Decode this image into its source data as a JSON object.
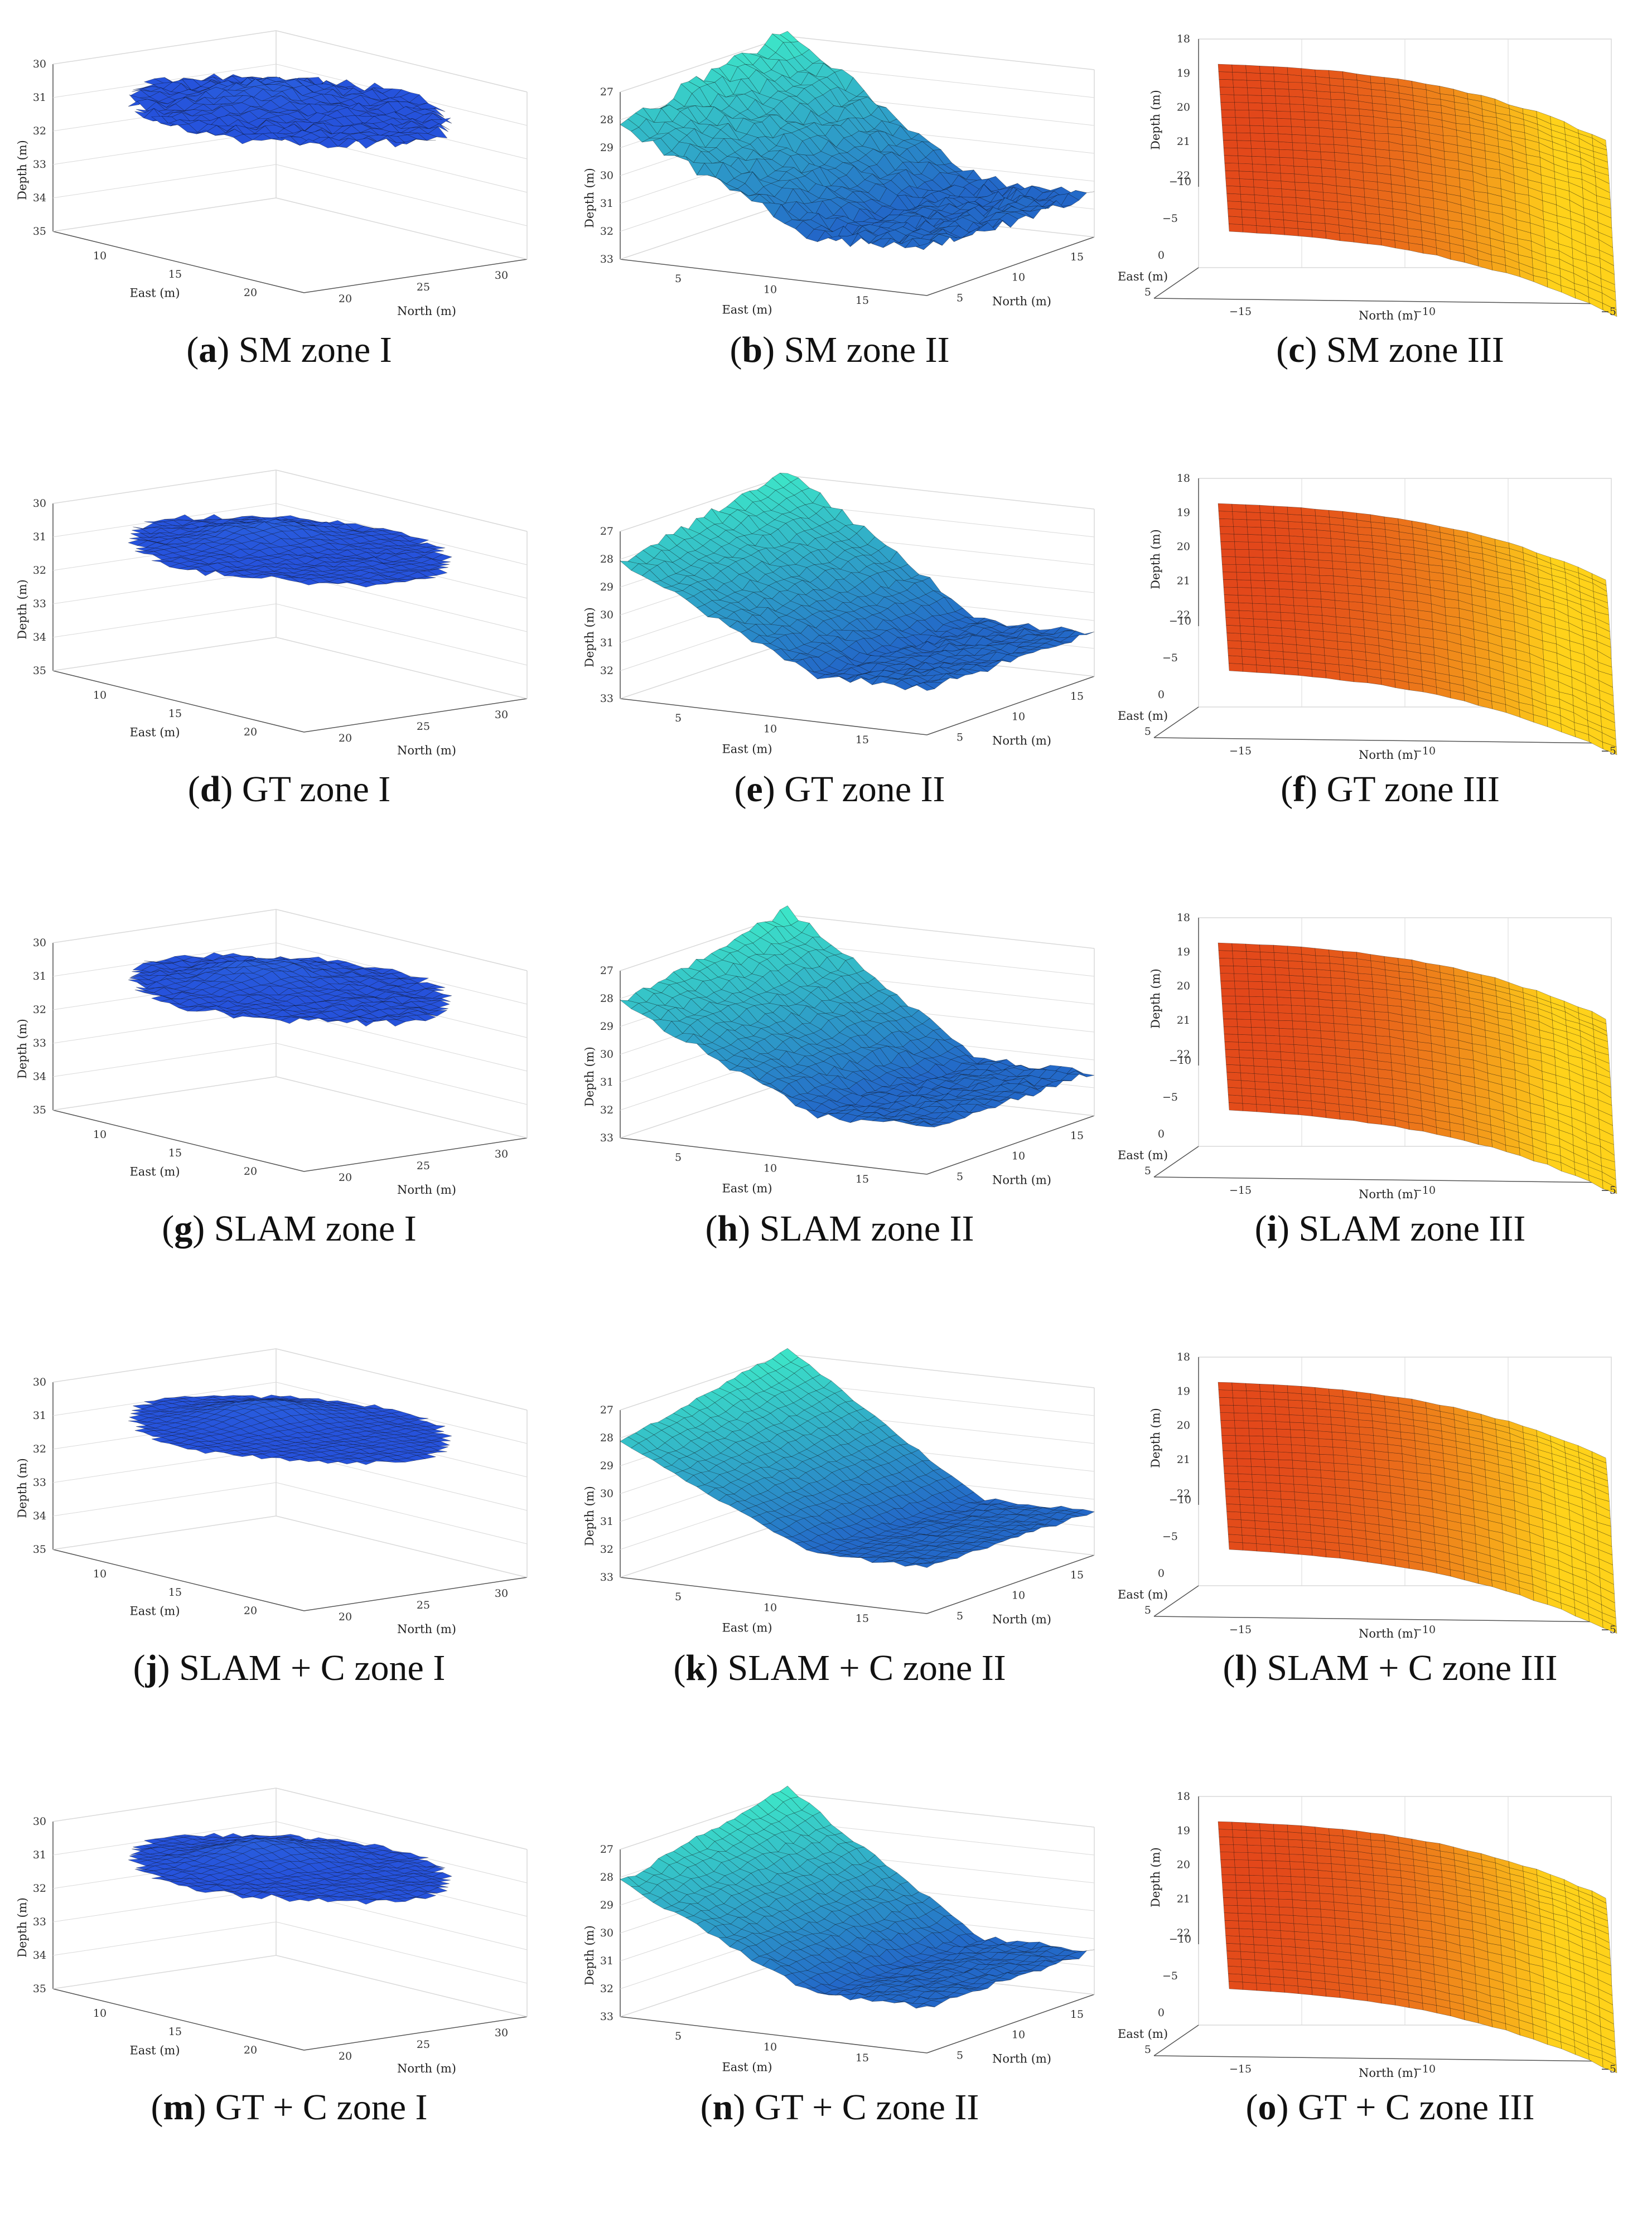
{
  "panels": [
    {
      "letter": "a",
      "caption": "SM zone I",
      "zone": "I",
      "surface": "SM",
      "colormap": "blue",
      "chart_data": {
        "type": "surface3d",
        "xlabel": "East (m)",
        "ylabel": "North (m)",
        "zlabel": "Depth (m)",
        "xticks": [
          "10",
          "15",
          "20"
        ],
        "yticks": [
          "20",
          "25",
          "30"
        ],
        "zticks": [
          "30",
          "31",
          "32",
          "33",
          "34",
          "35"
        ],
        "xlim": [
          7,
          22
        ],
        "ylim": [
          20,
          31
        ],
        "zlim": [
          30,
          35
        ],
        "roughness": 0.9
      }
    },
    {
      "letter": "b",
      "caption": "SM zone II",
      "zone": "II",
      "surface": "SM",
      "colormap": "cyan",
      "chart_data": {
        "type": "surface3d",
        "xlabel": "East (m)",
        "ylabel": "North (m)",
        "zlabel": "Depth (m)",
        "xticks": [
          "5",
          "10",
          "15"
        ],
        "yticks": [
          "5",
          "10",
          "15"
        ],
        "zticks": [
          "27",
          "28",
          "29",
          "30",
          "31",
          "32",
          "33"
        ],
        "xlim": [
          0,
          16
        ],
        "ylim": [
          0,
          16
        ],
        "zlim": [
          27,
          33
        ],
        "roughness": 0.7
      }
    },
    {
      "letter": "c",
      "caption": "SM zone III",
      "zone": "III",
      "surface": "SM",
      "colormap": "orange",
      "chart_data": {
        "type": "surface3d",
        "xlabel": "East (m)",
        "ylabel": "North (m)",
        "zlabel": "Depth (m)",
        "xticks": [
          "5",
          "0",
          "−5",
          "−10"
        ],
        "yticks": [
          "−15",
          "−10",
          "−5"
        ],
        "zticks": [
          "18",
          "19",
          "20",
          "21",
          "22"
        ],
        "xlim": [
          -10,
          5
        ],
        "ylim": [
          -18,
          -5
        ],
        "zlim": [
          18,
          22
        ],
        "roughness": 0.3
      }
    },
    {
      "letter": "d",
      "caption": "GT zone I",
      "zone": "I",
      "surface": "GT",
      "colormap": "blue",
      "chart_data": {
        "type": "surface3d",
        "xlabel": "East (m)",
        "ylabel": "North (m)",
        "zlabel": "Depth (m)",
        "xticks": [
          "10",
          "15",
          "20"
        ],
        "yticks": [
          "20",
          "25",
          "30"
        ],
        "zticks": [
          "30",
          "31",
          "32",
          "33",
          "34",
          "35"
        ],
        "xlim": [
          7,
          22
        ],
        "ylim": [
          20,
          31
        ],
        "zlim": [
          30,
          35
        ],
        "roughness": 0.4
      }
    },
    {
      "letter": "e",
      "caption": "GT zone II",
      "zone": "II",
      "surface": "GT",
      "colormap": "cyan",
      "chart_data": {
        "type": "surface3d",
        "xlabel": "East (m)",
        "ylabel": "North (m)",
        "zlabel": "Depth (m)",
        "xticks": [
          "5",
          "10",
          "15"
        ],
        "yticks": [
          "5",
          "10",
          "15"
        ],
        "zticks": [
          "27",
          "28",
          "29",
          "30",
          "31",
          "32",
          "33"
        ],
        "xlim": [
          0,
          16
        ],
        "ylim": [
          0,
          16
        ],
        "zlim": [
          27,
          33
        ],
        "roughness": 0.4
      }
    },
    {
      "letter": "f",
      "caption": "GT zone III",
      "zone": "III",
      "surface": "GT",
      "colormap": "orange",
      "chart_data": {
        "type": "surface3d",
        "xlabel": "East (m)",
        "ylabel": "North (m)",
        "zlabel": "Depth (m)",
        "xticks": [
          "5",
          "0",
          "−5",
          "−10"
        ],
        "yticks": [
          "−15",
          "−10",
          "−5"
        ],
        "zticks": [
          "18",
          "19",
          "20",
          "21",
          "22"
        ],
        "xlim": [
          -10,
          5
        ],
        "ylim": [
          -18,
          -5
        ],
        "zlim": [
          18,
          22
        ],
        "roughness": 0.25
      }
    },
    {
      "letter": "g",
      "caption": "SLAM zone I",
      "zone": "I",
      "surface": "SLAM",
      "colormap": "blue",
      "chart_data": {
        "type": "surface3d",
        "xlabel": "East (m)",
        "ylabel": "North (m)",
        "zlabel": "Depth (m)",
        "xticks": [
          "10",
          "15",
          "20"
        ],
        "yticks": [
          "20",
          "25",
          "30"
        ],
        "zticks": [
          "30",
          "31",
          "32",
          "33",
          "34",
          "35"
        ],
        "xlim": [
          7,
          22
        ],
        "ylim": [
          20,
          31
        ],
        "zlim": [
          30,
          35
        ],
        "roughness": 0.5
      }
    },
    {
      "letter": "h",
      "caption": "SLAM zone II",
      "zone": "II",
      "surface": "SLAM",
      "colormap": "cyan",
      "chart_data": {
        "type": "surface3d",
        "xlabel": "East (m)",
        "ylabel": "North (m)",
        "zlabel": "Depth (m)",
        "xticks": [
          "5",
          "10",
          "15"
        ],
        "yticks": [
          "5",
          "10",
          "15"
        ],
        "zticks": [
          "27",
          "28",
          "29",
          "30",
          "31",
          "32",
          "33"
        ],
        "xlim": [
          0,
          16
        ],
        "ylim": [
          0,
          16
        ],
        "zlim": [
          27,
          33
        ],
        "roughness": 0.4
      }
    },
    {
      "letter": "i",
      "caption": "SLAM zone III",
      "zone": "III",
      "surface": "SLAM",
      "colormap": "orange",
      "chart_data": {
        "type": "surface3d",
        "xlabel": "East (m)",
        "ylabel": "North (m)",
        "zlabel": "Depth (m)",
        "xticks": [
          "5",
          "0",
          "−5",
          "−10"
        ],
        "yticks": [
          "−15",
          "−10",
          "−5"
        ],
        "zticks": [
          "18",
          "19",
          "20",
          "21",
          "22"
        ],
        "xlim": [
          -10,
          5
        ],
        "ylim": [
          -18,
          -5
        ],
        "zlim": [
          18,
          22
        ],
        "roughness": 0.25
      }
    },
    {
      "letter": "j",
      "caption": "SLAM + C zone I",
      "zone": "I",
      "surface": "SLAM + C",
      "colormap": "blue",
      "chart_data": {
        "type": "surface3d",
        "xlabel": "East (m)",
        "ylabel": "North (m)",
        "zlabel": "Depth (m)",
        "xticks": [
          "10",
          "15",
          "20"
        ],
        "yticks": [
          "20",
          "25",
          "30"
        ],
        "zticks": [
          "30",
          "31",
          "32",
          "33",
          "34",
          "35"
        ],
        "xlim": [
          7,
          22
        ],
        "ylim": [
          20,
          31
        ],
        "zlim": [
          30,
          35
        ],
        "roughness": 0.2
      }
    },
    {
      "letter": "k",
      "caption": "SLAM + C zone II",
      "zone": "II",
      "surface": "SLAM + C",
      "colormap": "cyan",
      "chart_data": {
        "type": "surface3d",
        "xlabel": "East (m)",
        "ylabel": "North (m)",
        "zlabel": "Depth (m)",
        "xticks": [
          "5",
          "10",
          "15"
        ],
        "yticks": [
          "5",
          "10",
          "15"
        ],
        "zticks": [
          "27",
          "28",
          "29",
          "30",
          "31",
          "32",
          "33"
        ],
        "xlim": [
          0,
          16
        ],
        "ylim": [
          0,
          16
        ],
        "zlim": [
          27,
          33
        ],
        "roughness": 0.2
      }
    },
    {
      "letter": "l",
      "caption": "SLAM + C zone III",
      "zone": "III",
      "surface": "SLAM + C",
      "colormap": "orange",
      "chart_data": {
        "type": "surface3d",
        "xlabel": "East (m)",
        "ylabel": "North (m)",
        "zlabel": "Depth (m)",
        "xticks": [
          "5",
          "0",
          "−5",
          "−10"
        ],
        "yticks": [
          "−15",
          "−10",
          "−5"
        ],
        "zticks": [
          "18",
          "19",
          "20",
          "21",
          "22"
        ],
        "xlim": [
          -10,
          5
        ],
        "ylim": [
          -18,
          -5
        ],
        "zlim": [
          18,
          22
        ],
        "roughness": 0.2
      }
    },
    {
      "letter": "m",
      "caption": "GT + C zone I",
      "zone": "I",
      "surface": "GT + C",
      "colormap": "blue",
      "chart_data": {
        "type": "surface3d",
        "xlabel": "East (m)",
        "ylabel": "North (m)",
        "zlabel": "Depth (m)",
        "xticks": [
          "10",
          "15",
          "20"
        ],
        "yticks": [
          "20",
          "25",
          "30"
        ],
        "zticks": [
          "30",
          "31",
          "32",
          "33",
          "34",
          "35"
        ],
        "xlim": [
          7,
          22
        ],
        "ylim": [
          20,
          31
        ],
        "zlim": [
          30,
          35
        ],
        "roughness": 0.3
      }
    },
    {
      "letter": "n",
      "caption": "GT + C zone II",
      "zone": "II",
      "surface": "GT + C",
      "colormap": "cyan",
      "chart_data": {
        "type": "surface3d",
        "xlabel": "East (m)",
        "ylabel": "North (m)",
        "zlabel": "Depth (m)",
        "xticks": [
          "5",
          "10",
          "15"
        ],
        "yticks": [
          "5",
          "10",
          "15"
        ],
        "zticks": [
          "27",
          "28",
          "29",
          "30",
          "31",
          "32",
          "33"
        ],
        "xlim": [
          0,
          16
        ],
        "ylim": [
          0,
          16
        ],
        "zlim": [
          27,
          33
        ],
        "roughness": 0.3
      }
    },
    {
      "letter": "o",
      "caption": "GT + C zone III",
      "zone": "III",
      "surface": "GT + C",
      "colormap": "orange",
      "chart_data": {
        "type": "surface3d",
        "xlabel": "East (m)",
        "ylabel": "North (m)",
        "zlabel": "Depth (m)",
        "xticks": [
          "5",
          "0",
          "−5",
          "−10"
        ],
        "yticks": [
          "−15",
          "−10",
          "−5"
        ],
        "zticks": [
          "18",
          "19",
          "20",
          "21",
          "22"
        ],
        "xlim": [
          -10,
          5
        ],
        "ylim": [
          -18,
          -5
        ],
        "zlim": [
          18,
          22
        ],
        "roughness": 0.2
      }
    }
  ],
  "colors": {
    "blue_dark": "#1a2fd6",
    "blue_mid": "#2f6fe0",
    "cyan_light": "#3ff0c8",
    "orange_dark": "#e2451a",
    "orange_light": "#ffd21a",
    "grid": "#d9d9d9"
  }
}
